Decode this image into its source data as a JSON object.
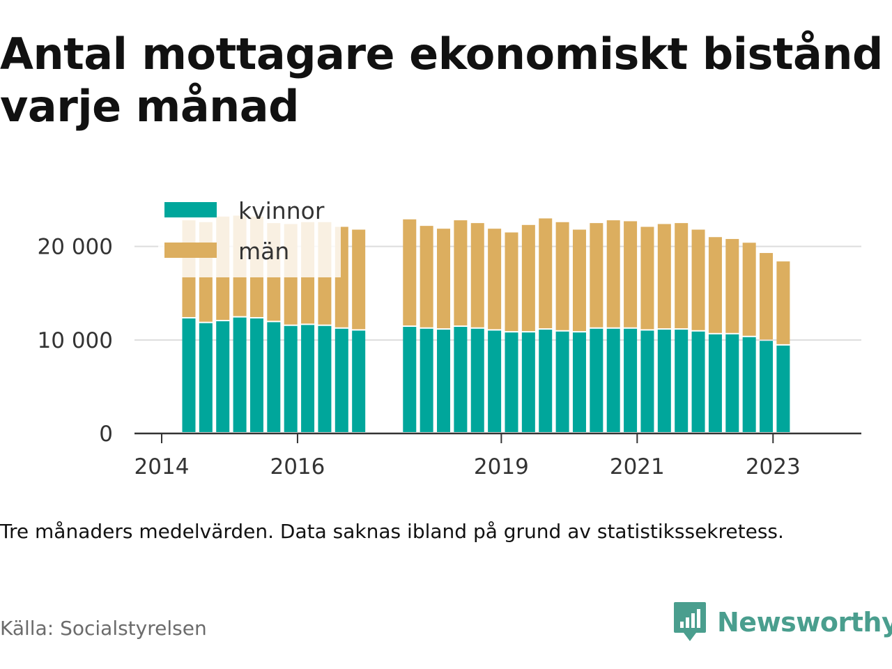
{
  "title_lines": [
    "Antal mottagare ekonomiskt bistånd",
    "varje månad"
  ],
  "note": "Tre månaders medelvärden. Data saknas ibland på grund av statistikssekretess.",
  "source": "Källa: Socialstyrelsen",
  "brand": {
    "name": "Newsworthy",
    "icon": "newsworthy-logo-icon",
    "color": "#4a9e8e"
  },
  "colors": {
    "kvinnor": "#00a69b",
    "man": "#dcae5f",
    "grid": "#dddddd",
    "axis": "#333333",
    "text": "#333333"
  },
  "chart_data": {
    "type": "bar",
    "stacked": true,
    "x": [
      2014.4,
      2014.65,
      2014.9,
      2015.15,
      2015.4,
      2015.65,
      2015.9,
      2016.15,
      2016.4,
      2016.65,
      2016.9,
      2017.65,
      2017.9,
      2018.15,
      2018.4,
      2018.65,
      2018.9,
      2019.15,
      2019.4,
      2019.65,
      2019.9,
      2020.15,
      2020.4,
      2020.65,
      2020.9,
      2021.15,
      2021.4,
      2021.65,
      2021.9,
      2022.15,
      2022.4,
      2022.65,
      2022.9,
      2023.15
    ],
    "series": [
      {
        "name": "kvinnor",
        "values": [
          12300,
          11800,
          12000,
          12400,
          12300,
          11900,
          11500,
          11600,
          11500,
          11200,
          11000,
          11400,
          11200,
          11100,
          11400,
          11200,
          11000,
          10800,
          10800,
          11100,
          10900,
          10800,
          11200,
          11200,
          11200,
          11000,
          11100,
          11100,
          10900,
          10600,
          10600,
          10300,
          9900,
          9400
        ]
      },
      {
        "name": "män",
        "values": [
          10500,
          10800,
          11200,
          10900,
          10900,
          10600,
          10900,
          11000,
          11100,
          10900,
          10800,
          11500,
          11000,
          10800,
          11400,
          11300,
          10900,
          10700,
          11500,
          11900,
          11700,
          11000,
          11300,
          11600,
          11500,
          11100,
          11300,
          11400,
          10900,
          10400,
          10200,
          10100,
          9400,
          9000
        ]
      }
    ],
    "ylim": [
      0,
      24000
    ],
    "yticks": [
      0,
      10000,
      20000
    ],
    "ytick_labels": [
      "0",
      "10 000",
      "20 000"
    ],
    "xticks": [
      2014,
      2016,
      2019,
      2021,
      2023
    ],
    "xtick_labels": [
      "2014",
      "2016",
      "2019",
      "2021",
      "2023"
    ],
    "xlim": [
      2013.6,
      2024.3
    ],
    "legend": {
      "position": "top-left",
      "entries": [
        "kvinnor",
        "män"
      ]
    },
    "grid": true
  }
}
